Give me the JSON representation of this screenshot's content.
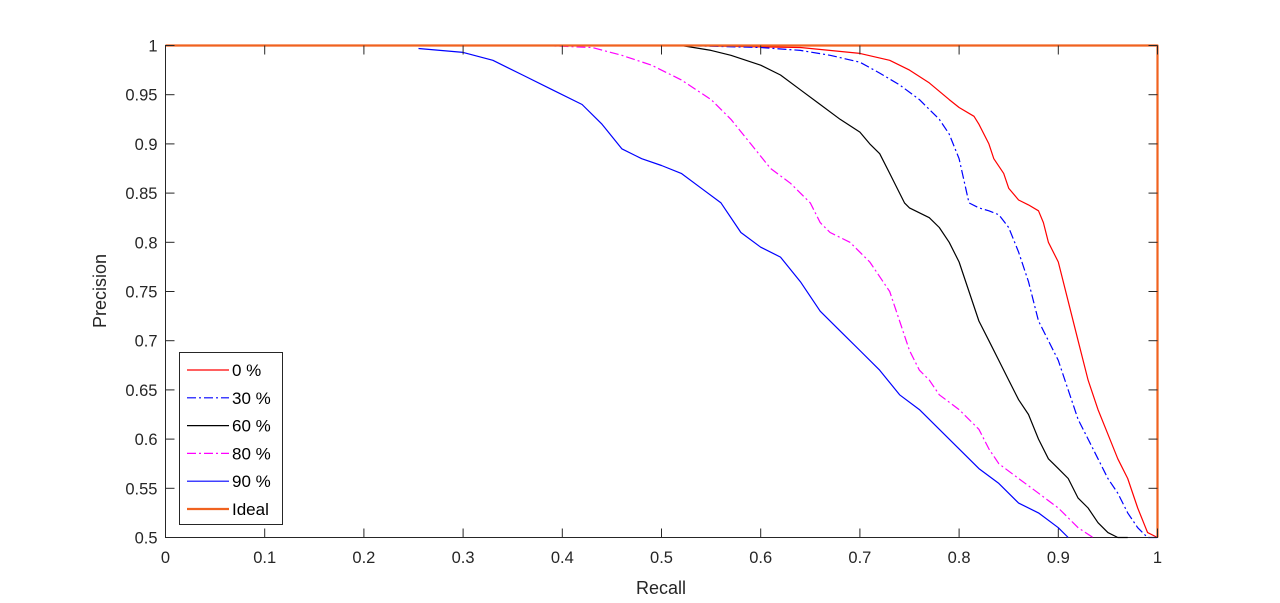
{
  "chart_data": {
    "type": "line",
    "title": "",
    "xlabel": "Recall",
    "ylabel": "Precision",
    "xlim": [
      0,
      1
    ],
    "ylim": [
      0.5,
      1
    ],
    "grid": false,
    "legend_placement": "bottom-left",
    "xticks": [
      "0",
      "0.1",
      "0.2",
      "0.3",
      "0.4",
      "0.5",
      "0.6",
      "0.7",
      "0.8",
      "0.9",
      "1"
    ],
    "yticks": [
      "0.5",
      "0.55",
      "0.6",
      "0.65",
      "0.7",
      "0.75",
      "0.8",
      "0.85",
      "0.9",
      "0.95",
      "1"
    ],
    "series": [
      {
        "name": "0 %",
        "color": "#ff0000",
        "dash": "solid",
        "x": [
          0.0,
          0.52,
          0.64,
          0.7,
          0.73,
          0.75,
          0.77,
          0.79,
          0.8,
          0.815,
          0.82,
          0.83,
          0.835,
          0.845,
          0.85,
          0.86,
          0.87,
          0.88,
          0.885,
          0.89,
          0.9,
          0.91,
          0.92,
          0.93,
          0.94,
          0.95,
          0.96,
          0.97,
          0.98,
          0.99,
          1.0
        ],
        "y": [
          1.0,
          1.0,
          0.998,
          0.992,
          0.985,
          0.975,
          0.962,
          0.945,
          0.937,
          0.928,
          0.92,
          0.9,
          0.885,
          0.87,
          0.855,
          0.843,
          0.838,
          0.832,
          0.82,
          0.8,
          0.78,
          0.74,
          0.7,
          0.66,
          0.63,
          0.605,
          0.58,
          0.56,
          0.53,
          0.505,
          0.5
        ]
      },
      {
        "name": "30 %",
        "color": "#0000ff",
        "dash": "dashdot",
        "x": [
          0.0,
          0.52,
          0.6,
          0.64,
          0.67,
          0.7,
          0.72,
          0.74,
          0.76,
          0.78,
          0.79,
          0.8,
          0.81,
          0.82,
          0.83,
          0.84,
          0.85,
          0.86,
          0.87,
          0.875,
          0.88,
          0.89,
          0.9,
          0.91,
          0.92,
          0.93,
          0.94,
          0.95,
          0.96,
          0.97,
          0.98,
          0.99,
          1.0
        ],
        "y": [
          1.0,
          1.0,
          0.998,
          0.995,
          0.99,
          0.983,
          0.972,
          0.96,
          0.945,
          0.925,
          0.91,
          0.885,
          0.84,
          0.835,
          0.832,
          0.828,
          0.815,
          0.79,
          0.76,
          0.74,
          0.72,
          0.7,
          0.68,
          0.65,
          0.62,
          0.6,
          0.58,
          0.56,
          0.545,
          0.525,
          0.51,
          0.5,
          0.5
        ]
      },
      {
        "name": "60 %",
        "color": "#000000",
        "dash": "solid",
        "x": [
          0.52,
          0.55,
          0.57,
          0.6,
          0.62,
          0.64,
          0.66,
          0.68,
          0.7,
          0.71,
          0.72,
          0.73,
          0.74,
          0.745,
          0.75,
          0.76,
          0.77,
          0.78,
          0.79,
          0.8,
          0.81,
          0.82,
          0.83,
          0.84,
          0.85,
          0.86,
          0.87,
          0.88,
          0.89,
          0.9,
          0.91,
          0.92,
          0.93,
          0.94,
          0.95,
          0.96,
          0.97
        ],
        "y": [
          1.0,
          0.995,
          0.99,
          0.98,
          0.97,
          0.955,
          0.94,
          0.925,
          0.912,
          0.9,
          0.89,
          0.87,
          0.85,
          0.84,
          0.835,
          0.83,
          0.825,
          0.815,
          0.8,
          0.78,
          0.75,
          0.72,
          0.7,
          0.68,
          0.66,
          0.64,
          0.625,
          0.6,
          0.58,
          0.57,
          0.56,
          0.54,
          0.53,
          0.515,
          0.505,
          0.5,
          0.5
        ]
      },
      {
        "name": "80 %",
        "color": "#ff00ff",
        "dash": "dashdot",
        "x": [
          0.38,
          0.43,
          0.46,
          0.49,
          0.52,
          0.55,
          0.57,
          0.59,
          0.61,
          0.63,
          0.65,
          0.66,
          0.67,
          0.69,
          0.71,
          0.73,
          0.74,
          0.75,
          0.76,
          0.77,
          0.78,
          0.8,
          0.82,
          0.83,
          0.84,
          0.86,
          0.88,
          0.9,
          0.92,
          0.935
        ],
        "y": [
          1.0,
          0.998,
          0.99,
          0.98,
          0.965,
          0.945,
          0.925,
          0.9,
          0.875,
          0.86,
          0.84,
          0.82,
          0.81,
          0.8,
          0.78,
          0.75,
          0.72,
          0.69,
          0.67,
          0.66,
          0.645,
          0.63,
          0.61,
          0.59,
          0.575,
          0.56,
          0.545,
          0.53,
          0.51,
          0.5
        ]
      },
      {
        "name": "90 %",
        "color": "#0000ff",
        "dash": "solid",
        "x": [
          0.255,
          0.3,
          0.33,
          0.36,
          0.39,
          0.42,
          0.44,
          0.46,
          0.48,
          0.5,
          0.52,
          0.54,
          0.56,
          0.58,
          0.6,
          0.62,
          0.64,
          0.66,
          0.68,
          0.7,
          0.72,
          0.74,
          0.76,
          0.78,
          0.8,
          0.82,
          0.84,
          0.86,
          0.88,
          0.9,
          0.91
        ],
        "y": [
          0.997,
          0.993,
          0.985,
          0.97,
          0.955,
          0.94,
          0.92,
          0.895,
          0.885,
          0.878,
          0.87,
          0.855,
          0.84,
          0.81,
          0.795,
          0.785,
          0.76,
          0.73,
          0.71,
          0.69,
          0.67,
          0.645,
          0.63,
          0.61,
          0.59,
          0.57,
          0.555,
          0.535,
          0.525,
          0.51,
          0.5
        ]
      },
      {
        "name": "Ideal",
        "color": "#f0621f",
        "dash": "solid",
        "thick": true,
        "x": [
          0,
          1,
          1
        ],
        "y": [
          1,
          1,
          0.5
        ]
      }
    ]
  }
}
